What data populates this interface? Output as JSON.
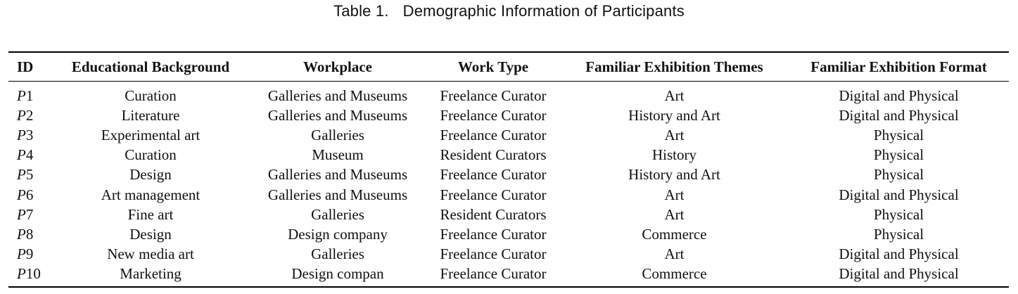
{
  "caption": {
    "label": "Table 1.",
    "title": "Demographic Information of Participants"
  },
  "table": {
    "headers": {
      "id": "ID",
      "education": "Educational Background",
      "workplace": "Workplace",
      "work_type": "Work Type",
      "themes": "Familiar Exhibition Themes",
      "format": "Familiar Exhibition Format"
    },
    "rows": [
      {
        "id_letter": "P",
        "id_num": "1",
        "education": "Curation",
        "workplace": "Galleries and Museums",
        "work_type": "Freelance Curator",
        "themes": "Art",
        "format": "Digital and Physical"
      },
      {
        "id_letter": "P",
        "id_num": "2",
        "education": "Literature",
        "workplace": "Galleries and Museums",
        "work_type": "Freelance Curator",
        "themes": "History and Art",
        "format": "Digital and Physical"
      },
      {
        "id_letter": "P",
        "id_num": "3",
        "education": "Experimental art",
        "workplace": "Galleries",
        "work_type": "Freelance Curator",
        "themes": "Art",
        "format": "Physical"
      },
      {
        "id_letter": "P",
        "id_num": "4",
        "education": "Curation",
        "workplace": "Museum",
        "work_type": "Resident Curators",
        "themes": "History",
        "format": "Physical"
      },
      {
        "id_letter": "P",
        "id_num": "5",
        "education": "Design",
        "workplace": "Galleries and Museums",
        "work_type": "Freelance Curator",
        "themes": "History and Art",
        "format": "Physical"
      },
      {
        "id_letter": "P",
        "id_num": "6",
        "education": "Art management",
        "workplace": "Galleries and Museums",
        "work_type": "Freelance Curator",
        "themes": "Art",
        "format": "Digital and Physical"
      },
      {
        "id_letter": "P",
        "id_num": "7",
        "education": "Fine art",
        "workplace": "Galleries",
        "work_type": "Resident Curators",
        "themes": "Art",
        "format": "Physical"
      },
      {
        "id_letter": "P",
        "id_num": "8",
        "education": "Design",
        "workplace": "Design company",
        "work_type": "Freelance Curator",
        "themes": "Commerce",
        "format": "Physical"
      },
      {
        "id_letter": "P",
        "id_num": "9",
        "education": "New media art",
        "workplace": "Galleries",
        "work_type": "Freelance Curator",
        "themes": "Art",
        "format": "Digital and Physical"
      },
      {
        "id_letter": "P",
        "id_num": "10",
        "education": "Marketing",
        "workplace": "Design compan",
        "work_type": "Freelance Curator",
        "themes": "Commerce",
        "format": "Digital and Physical"
      }
    ]
  }
}
